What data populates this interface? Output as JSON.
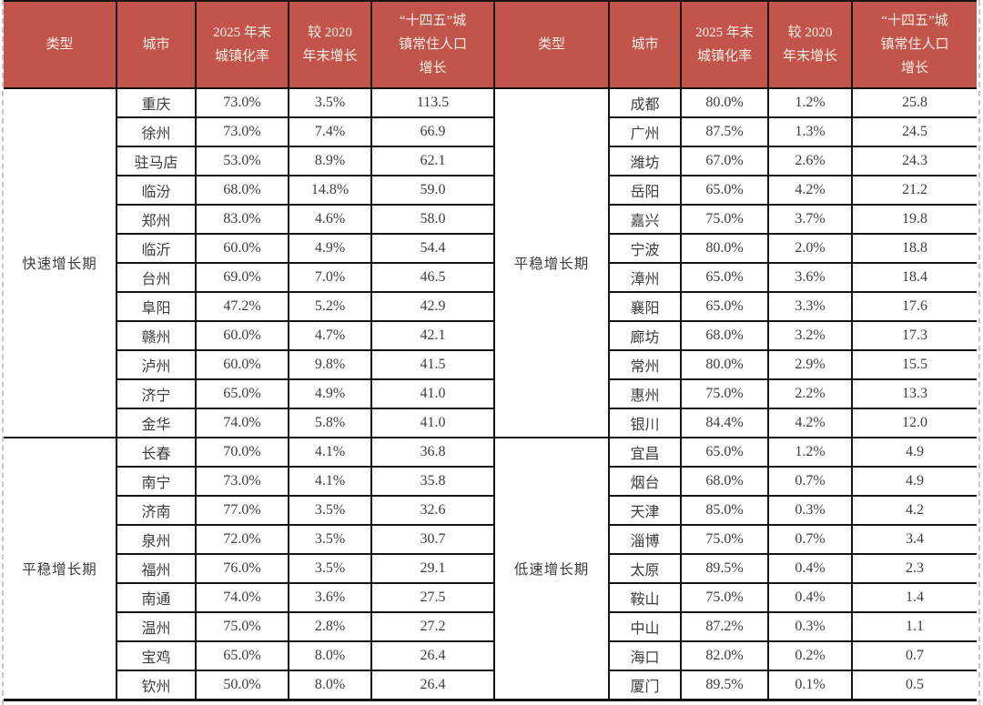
{
  "colors": {
    "header_bg": "#c2544b",
    "header_text": "#f6f0e4",
    "border": "#141414",
    "body_text": "#3c3c3c"
  },
  "headers": {
    "type": "类型",
    "city": "城市",
    "rate": "2025 年末\n城镇化率",
    "growth": "较 2020\n年末增长",
    "pop": "“十四五”城\n镇常住人口\n增长"
  },
  "left_table": {
    "sections": [
      {
        "type": "快速增长期",
        "rows": [
          [
            "重庆",
            "73.0%",
            "3.5%",
            "113.5"
          ],
          [
            "徐州",
            "73.0%",
            "7.4%",
            "66.9"
          ],
          [
            "驻马店",
            "53.0%",
            "8.9%",
            "62.1"
          ],
          [
            "临汾",
            "68.0%",
            "14.8%",
            "59.0"
          ],
          [
            "郑州",
            "83.0%",
            "4.6%",
            "58.0"
          ],
          [
            "临沂",
            "60.0%",
            "4.9%",
            "54.4"
          ],
          [
            "台州",
            "69.0%",
            "7.0%",
            "46.5"
          ],
          [
            "阜阳",
            "47.2%",
            "5.2%",
            "42.9"
          ],
          [
            "赣州",
            "60.0%",
            "4.7%",
            "42.1"
          ],
          [
            "泸州",
            "60.0%",
            "9.8%",
            "41.5"
          ],
          [
            "济宁",
            "65.0%",
            "4.9%",
            "41.0"
          ],
          [
            "金华",
            "74.0%",
            "5.8%",
            "41.0"
          ]
        ]
      },
      {
        "type": "平稳增长期",
        "rows": [
          [
            "长春",
            "70.0%",
            "4.1%",
            "36.8"
          ],
          [
            "南宁",
            "73.0%",
            "4.1%",
            "35.8"
          ],
          [
            "济南",
            "77.0%",
            "3.5%",
            "32.6"
          ],
          [
            "泉州",
            "72.0%",
            "3.5%",
            "30.7"
          ],
          [
            "福州",
            "76.0%",
            "3.5%",
            "29.1"
          ],
          [
            "南通",
            "74.0%",
            "3.6%",
            "27.5"
          ],
          [
            "温州",
            "75.0%",
            "2.8%",
            "27.2"
          ],
          [
            "宝鸡",
            "65.0%",
            "8.0%",
            "26.4"
          ],
          [
            "钦州",
            "50.0%",
            "8.0%",
            "26.4"
          ]
        ]
      }
    ]
  },
  "right_table": {
    "sections": [
      {
        "type": "平稳增长期",
        "rows": [
          [
            "成都",
            "80.0%",
            "1.2%",
            "25.8"
          ],
          [
            "广州",
            "87.5%",
            "1.3%",
            "24.5"
          ],
          [
            "潍坊",
            "67.0%",
            "2.6%",
            "24.3"
          ],
          [
            "岳阳",
            "65.0%",
            "4.2%",
            "21.2"
          ],
          [
            "嘉兴",
            "75.0%",
            "3.7%",
            "19.8"
          ],
          [
            "宁波",
            "80.0%",
            "2.0%",
            "18.8"
          ],
          [
            "漳州",
            "65.0%",
            "3.6%",
            "18.4"
          ],
          [
            "襄阳",
            "65.0%",
            "3.3%",
            "17.6"
          ],
          [
            "廊坊",
            "68.0%",
            "3.2%",
            "17.3"
          ],
          [
            "常州",
            "80.0%",
            "2.9%",
            "15.5"
          ],
          [
            "惠州",
            "75.0%",
            "2.2%",
            "13.3"
          ],
          [
            "银川",
            "84.4%",
            "4.2%",
            "12.0"
          ]
        ]
      },
      {
        "type": "低速增长期",
        "rows": [
          [
            "宜昌",
            "65.0%",
            "1.2%",
            "4.9"
          ],
          [
            "烟台",
            "68.0%",
            "0.7%",
            "4.9"
          ],
          [
            "天津",
            "85.0%",
            "0.3%",
            "4.2"
          ],
          [
            "淄博",
            "75.0%",
            "0.7%",
            "3.4"
          ],
          [
            "太原",
            "89.5%",
            "0.4%",
            "2.3"
          ],
          [
            "鞍山",
            "75.0%",
            "0.4%",
            "1.4"
          ],
          [
            "中山",
            "87.2%",
            "0.3%",
            "1.1"
          ],
          [
            "海口",
            "82.0%",
            "0.2%",
            "0.7"
          ],
          [
            "厦门",
            "89.5%",
            "0.1%",
            "0.5"
          ]
        ]
      }
    ]
  }
}
